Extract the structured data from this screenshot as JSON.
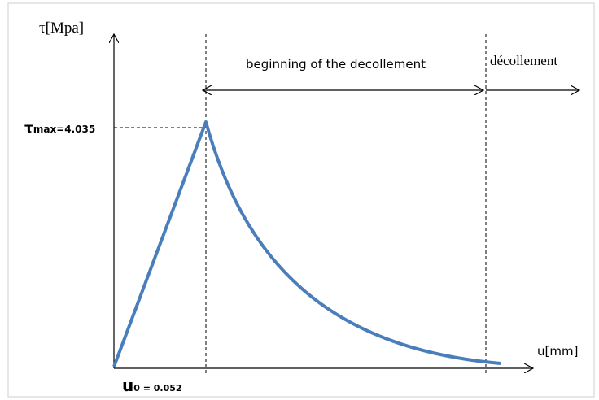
{
  "axes": {
    "y_label": "τ[Mpa]",
    "x_label": "u[mm]"
  },
  "peak": {
    "symbol": "τ",
    "subscript": "max",
    "value": "=4.035"
  },
  "slip": {
    "symbol": "u",
    "subscript": "0",
    "value": " = 0.052"
  },
  "zones": {
    "beginning": "beginning of the decollement",
    "decollement": "décollement"
  }
}
